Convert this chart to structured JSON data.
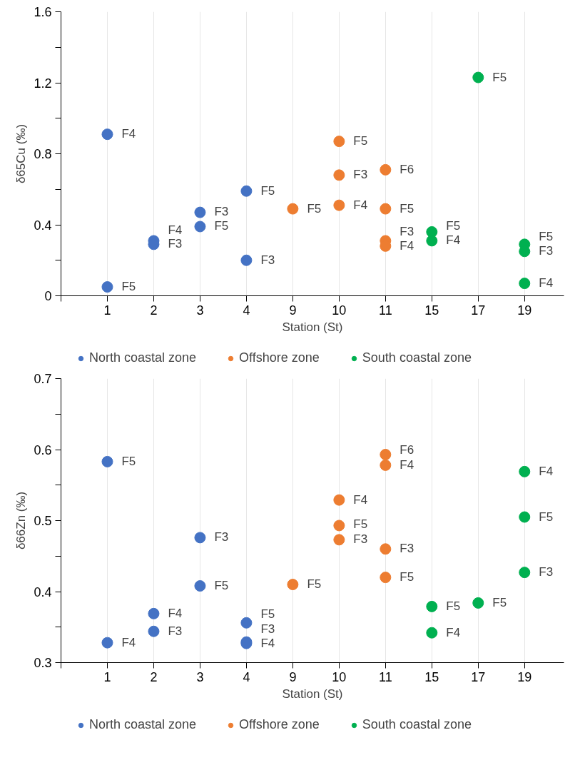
{
  "chart_data": [
    {
      "type": "scatter",
      "xlabel": "Station (St)",
      "ylabel": "δ65Cu (‰)",
      "categories": [
        "1",
        "2",
        "3",
        "4",
        "9",
        "10",
        "11",
        "15",
        "17",
        "19"
      ],
      "ylim": [
        0,
        1.6
      ],
      "yticks": [
        0,
        {
          "value": 0.2,
          "label": null
        },
        0.4,
        {
          "value": 0.6,
          "label": null
        },
        0.8,
        {
          "value": 1.0,
          "label": null
        },
        1.2,
        {
          "value": 1.4,
          "label": null
        },
        1.6
      ],
      "grid": "x",
      "legend": "bottom",
      "marker": "circle",
      "series": [
        {
          "name": "North coastal zone",
          "color": "#4472c4",
          "x": [
            "1",
            "1",
            "2",
            "2",
            "3",
            "3",
            "4",
            "4"
          ],
          "values": [
            0.91,
            0.05,
            0.31,
            0.29,
            0.47,
            0.39,
            0.59,
            0.2
          ],
          "value_labels": [
            "F4",
            "F5",
            "F4",
            "F3",
            "F3",
            "F5",
            "F5",
            "F3"
          ]
        },
        {
          "name": "Offshore zone",
          "color": "#ed7d31",
          "x": [
            "9",
            "10",
            "10",
            "10",
            "11",
            "11",
            "11",
            "11"
          ],
          "values": [
            0.49,
            0.87,
            0.68,
            0.51,
            0.71,
            0.49,
            0.31,
            0.28
          ],
          "value_labels": [
            "F5",
            "F5",
            "F3",
            "F4",
            "F6",
            "F5",
            "F3",
            "F4"
          ]
        },
        {
          "name": "South coastal zone",
          "color": "#00b050",
          "x": [
            "15",
            "15",
            "17",
            "19",
            "19",
            "19"
          ],
          "values": [
            0.36,
            0.31,
            1.23,
            0.29,
            0.25,
            0.07
          ],
          "value_labels": [
            "F5",
            "F4",
            "F5",
            "F5",
            "F3",
            "F4"
          ]
        }
      ]
    },
    {
      "type": "scatter",
      "xlabel": "Station (St)",
      "ylabel": "δ66Zn (‰)",
      "categories": [
        "1",
        "2",
        "3",
        "4",
        "9",
        "10",
        "11",
        "15",
        "17",
        "19"
      ],
      "ylim": [
        0.3,
        0.7
      ],
      "yticks": [
        0.3,
        {
          "value": 0.35,
          "label": null
        },
        0.4,
        {
          "value": 0.45,
          "label": null
        },
        0.5,
        {
          "value": 0.55,
          "label": null
        },
        0.6,
        {
          "value": 0.65,
          "label": null
        },
        0.7
      ],
      "grid": "x",
      "legend": "bottom",
      "marker": "circle",
      "series": [
        {
          "name": "North coastal zone",
          "color": "#4472c4",
          "x": [
            "1",
            "1",
            "2",
            "2",
            "3",
            "3",
            "4",
            "4",
            "4"
          ],
          "values": [
            0.583,
            0.328,
            0.369,
            0.344,
            0.476,
            0.408,
            0.356,
            0.329,
            0.327
          ],
          "value_labels": [
            "F5",
            "F4",
            "F4",
            "F3",
            "F3",
            "F5",
            "F5",
            "F3",
            "F4"
          ]
        },
        {
          "name": "Offshore zone",
          "color": "#ed7d31",
          "x": [
            "9",
            "10",
            "10",
            "10",
            "11",
            "11",
            "11",
            "11"
          ],
          "values": [
            0.41,
            0.529,
            0.493,
            0.473,
            0.593,
            0.578,
            0.46,
            0.42
          ],
          "value_labels": [
            "F5",
            "F4",
            "F5",
            "F3",
            "F6",
            "F4",
            "F3",
            "F5"
          ]
        },
        {
          "name": "South coastal zone",
          "color": "#00b050",
          "x": [
            "15",
            "15",
            "17",
            "19",
            "19",
            "19"
          ],
          "values": [
            0.379,
            0.342,
            0.384,
            0.569,
            0.505,
            0.427
          ],
          "value_labels": [
            "F5",
            "F4",
            "F5",
            "F4",
            "F5",
            "F3"
          ]
        }
      ]
    }
  ]
}
